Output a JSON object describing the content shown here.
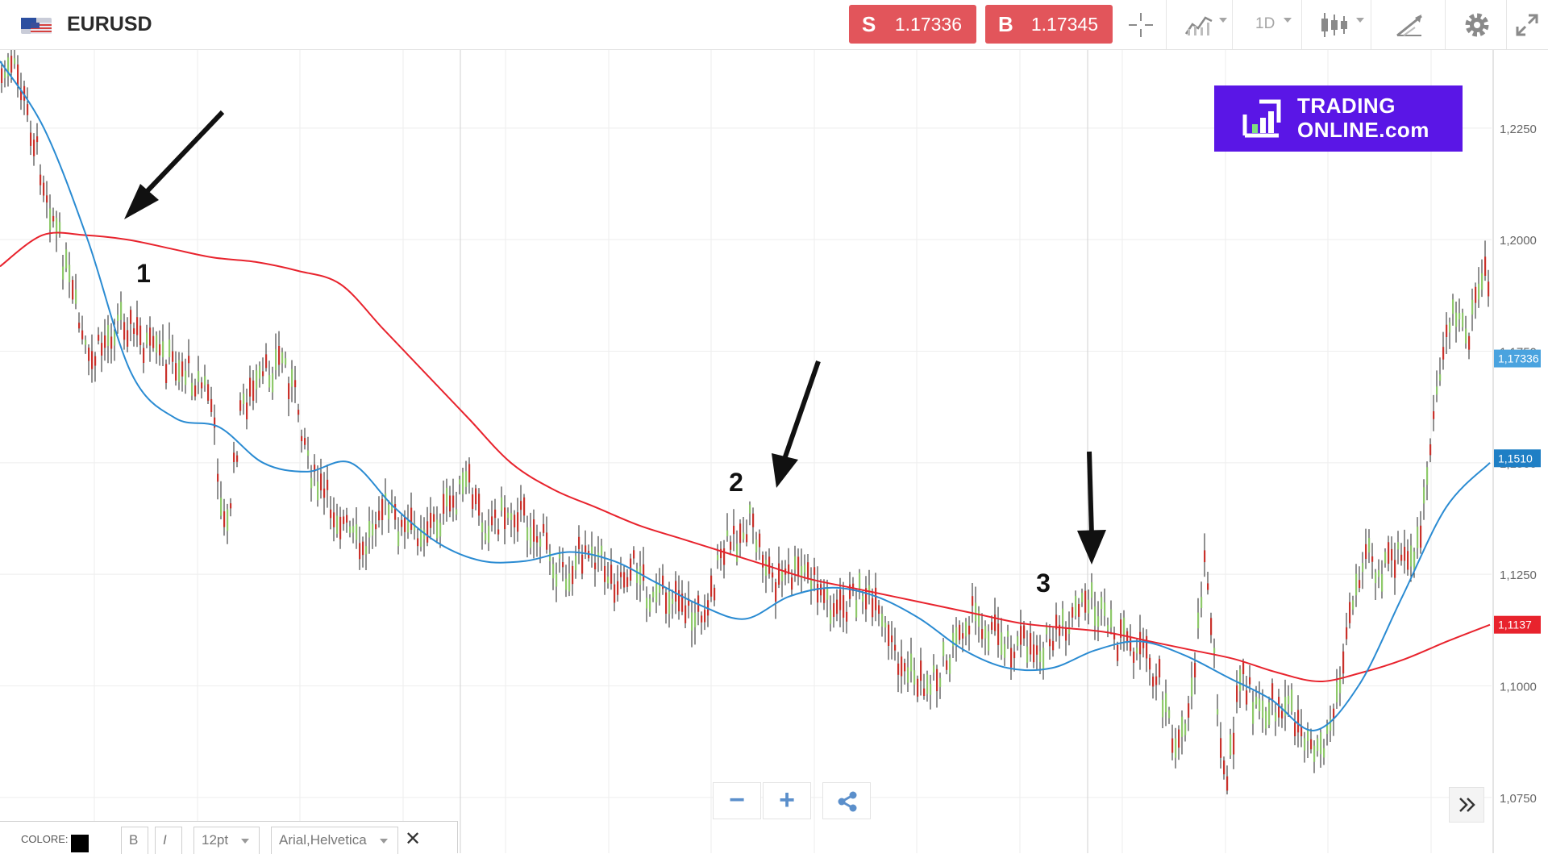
{
  "toolbar": {
    "symbol": "EURUSD",
    "flag_icon": "eu-us-flag-icon",
    "sell_letter": "S",
    "sell_price": "1.17336",
    "buy_letter": "B",
    "buy_price": "1.17345",
    "timeframe": "1D",
    "tools": [
      "crosshair-icon",
      "line-chart-icon",
      "timeframe-dropdown",
      "candlestick-icon",
      "drawing-tools-icon",
      "gear-icon",
      "fullscreen-icon"
    ],
    "sell_color": "#e2555b",
    "buy_color": "#e2555b"
  },
  "logo": {
    "line1": "TRADING",
    "line2": "ONLINE.com",
    "background": "#5a16e6"
  },
  "zoom": {
    "minus_label": "−",
    "plus_label": "+",
    "share_icon": "share-icon"
  },
  "drawing_bar": {
    "color_label": "COLORE:",
    "color": "#000000",
    "bold_label": "B",
    "italic_label": "I",
    "font_size": "12pt",
    "font_family": "Arial,Helvetica",
    "close_icon": "close-icon"
  },
  "chart_data": {
    "type": "candlestick",
    "symbol": "EURUSD",
    "y_ticks": [
      "1,2250",
      "1,2000",
      "1,1750",
      "1,1500",
      "1,1250",
      "1,1000",
      "1,0750"
    ],
    "ylim": [
      1.0625,
      1.2425
    ],
    "grid": true,
    "price_markers": [
      {
        "label": "1,17336",
        "value": 1.17336,
        "color": "#4aa3df"
      },
      {
        "label": "1,1510",
        "value": 1.151,
        "color": "#1f7fc5"
      },
      {
        "label": "1,1137",
        "value": 1.1137,
        "color": "#e8232d"
      }
    ],
    "series": [
      {
        "type": "moving_average",
        "color": "#e8232d",
        "values": [
          1.194,
          1.201,
          1.201,
          1.2,
          1.198,
          1.196,
          1.195,
          1.193,
          1.19,
          1.18,
          1.17,
          1.16,
          1.15,
          1.144,
          1.14,
          1.136,
          1.133,
          1.13,
          1.127,
          1.124,
          1.122,
          1.12,
          1.118,
          1.116,
          1.114,
          1.113,
          1.112,
          1.11,
          1.108,
          1.106,
          1.103,
          1.101,
          1.103,
          1.106,
          1.11,
          1.1137
        ]
      },
      {
        "type": "moving_average",
        "color": "#2a8bd2",
        "values": [
          1.24,
          1.225,
          1.2,
          1.17,
          1.16,
          1.158,
          1.15,
          1.148,
          1.15,
          1.14,
          1.132,
          1.128,
          1.128,
          1.13,
          1.128,
          1.123,
          1.118,
          1.115,
          1.12,
          1.122,
          1.12,
          1.115,
          1.108,
          1.104,
          1.104,
          1.108,
          1.11,
          1.107,
          1.102,
          1.097,
          1.09,
          1.1,
          1.12,
          1.14,
          1.15
        ]
      }
    ],
    "annotations": [
      {
        "text": "1",
        "position": "near 1,2000 crossover"
      },
      {
        "text": "2",
        "position": "near 1,1400"
      },
      {
        "text": "3",
        "position": "near 1,1250"
      }
    ]
  }
}
